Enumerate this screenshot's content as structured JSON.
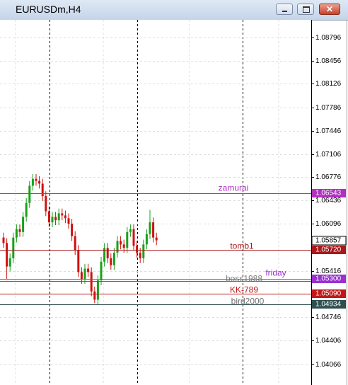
{
  "window_title": "EURUSDm,H4",
  "chart_data": {
    "type": "candlestick",
    "open": [
      1.059,
      1.0582,
      1.0548,
      1.056,
      1.059,
      1.0602,
      1.0598,
      1.062,
      1.064,
      1.0665,
      1.0675,
      1.0672,
      1.0668,
      1.065,
      1.0628,
      1.0612,
      1.062,
      1.0615,
      1.0625,
      1.0622,
      1.0618,
      1.061,
      1.0592,
      1.0572,
      1.054,
      1.053,
      1.0545,
      1.054,
      1.0512,
      1.05,
      1.0528,
      1.0555,
      1.0575,
      1.056,
      1.055,
      1.0568,
      1.0585,
      1.058,
      1.0575,
      1.0598,
      1.0602,
      1.0578,
      1.0568,
      1.056,
      1.058,
      1.0595,
      1.0612,
      1.059
    ],
    "high": [
      1.0597,
      1.0589,
      1.0567,
      1.0597,
      1.0609,
      1.0609,
      1.0627,
      1.0647,
      1.0672,
      1.0682,
      1.0682,
      1.0679,
      1.0675,
      1.0657,
      1.0635,
      1.0627,
      1.0627,
      1.0632,
      1.0632,
      1.0629,
      1.0625,
      1.0617,
      1.0599,
      1.0579,
      1.0547,
      1.0552,
      1.0552,
      1.0547,
      1.0519,
      1.0535,
      1.0562,
      1.0582,
      1.0582,
      1.0567,
      1.0575,
      1.0592,
      1.0592,
      1.0587,
      1.0605,
      1.0609,
      1.0609,
      1.0585,
      1.0575,
      1.0587,
      1.0602,
      1.063,
      1.0619,
      1.0597
    ],
    "low": [
      1.0575,
      1.053,
      1.0541,
      1.0553,
      1.0583,
      1.0591,
      1.0591,
      1.0613,
      1.0633,
      1.0658,
      1.0665,
      1.0661,
      1.0643,
      1.0621,
      1.0605,
      1.0605,
      1.0608,
      1.0608,
      1.0615,
      1.0611,
      1.0603,
      1.0585,
      1.0565,
      1.0533,
      1.0523,
      1.0523,
      1.0533,
      1.0505,
      1.0495,
      1.0493,
      1.0521,
      1.0548,
      1.0553,
      1.0543,
      1.0543,
      1.0561,
      1.0573,
      1.0568,
      1.0568,
      1.0591,
      1.0571,
      1.0561,
      1.0553,
      1.0553,
      1.0573,
      1.0588,
      1.0583,
      1.0579
    ],
    "close": [
      1.0582,
      1.0548,
      1.056,
      1.059,
      1.0602,
      1.0598,
      1.062,
      1.064,
      1.0665,
      1.0675,
      1.0672,
      1.0668,
      1.065,
      1.0628,
      1.0612,
      1.062,
      1.0615,
      1.0625,
      1.0622,
      1.0618,
      1.061,
      1.0592,
      1.0572,
      1.054,
      1.053,
      1.0545,
      1.054,
      1.0512,
      1.05,
      1.0528,
      1.0555,
      1.0575,
      1.056,
      1.055,
      1.0568,
      1.0585,
      1.058,
      1.0575,
      1.0598,
      1.0602,
      1.0578,
      1.0568,
      1.056,
      1.058,
      1.0595,
      1.0612,
      1.059,
      1.0586
    ],
    "up_color": "#1aa01a",
    "down_color": "#d01010",
    "ylim": [
      1.03765,
      1.09052
    ],
    "yticks": [
      1.04066,
      1.04406,
      1.04746,
      1.05416,
      1.06096,
      1.06436,
      1.06776,
      1.07106,
      1.07446,
      1.07786,
      1.08126,
      1.08456,
      1.08796
    ],
    "grid": true,
    "current_price": 1.05857,
    "levels": [
      {
        "name": "zamurai",
        "value": 1.06543,
        "value_label": "1.06543",
        "color": "#b030c0"
      },
      {
        "name": "tomb1",
        "value": 1.0572,
        "value_label": "1.05720",
        "color": "#a81818"
      },
      {
        "name": "boss1988",
        "value": 1.0527,
        "color": "#555555"
      },
      {
        "name": "friday",
        "value": 1.053,
        "value_label": "1.05300",
        "color": "#9a30d0"
      },
      {
        "name": "KK-789",
        "value": 1.0509,
        "value_label": "1.05090",
        "color": "#c01818"
      },
      {
        "name": "bird2000",
        "value": 1.04934,
        "value_label": "1.04934",
        "color": "#2f4f4f"
      }
    ]
  }
}
